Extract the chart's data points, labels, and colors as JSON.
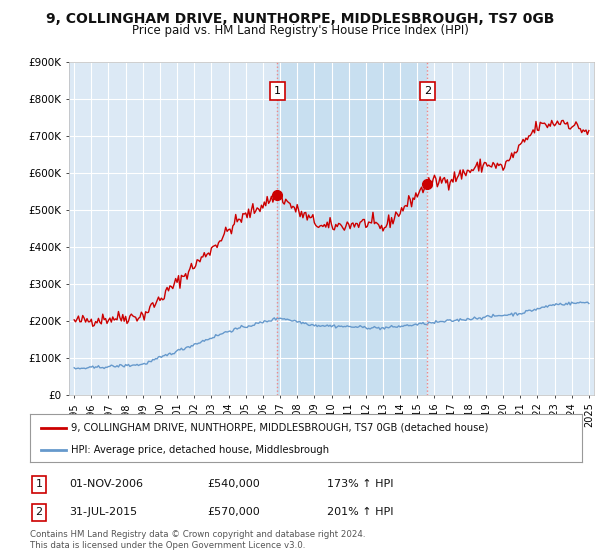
{
  "title": "9, COLLINGHAM DRIVE, NUNTHORPE, MIDDLESBROUGH, TS7 0GB",
  "subtitle": "Price paid vs. HM Land Registry's House Price Index (HPI)",
  "title_fontsize": 10,
  "subtitle_fontsize": 8.5,
  "background_color": "#ffffff",
  "plot_bg_color": "#dce9f5",
  "plot_bg_color_highlight": "#c8dff0",
  "grid_color": "#ffffff",
  "ylim": [
    0,
    900000
  ],
  "yticks": [
    0,
    100000,
    200000,
    300000,
    400000,
    500000,
    600000,
    700000,
    800000,
    900000
  ],
  "ytick_labels": [
    "£0",
    "£100K",
    "£200K",
    "£300K",
    "£400K",
    "£500K",
    "£600K",
    "£700K",
    "£800K",
    "£900K"
  ],
  "xlim_start": 1994.7,
  "xlim_end": 2025.3,
  "sale1_x": 2006.833,
  "sale1_y": 540000,
  "sale1_label": "1",
  "sale1_date": "01-NOV-2006",
  "sale1_price": "£540,000",
  "sale1_hpi": "173% ↑ HPI",
  "sale2_x": 2015.583,
  "sale2_y": 570000,
  "sale2_label": "2",
  "sale2_date": "31-JUL-2015",
  "sale2_price": "£570,000",
  "sale2_hpi": "201% ↑ HPI",
  "red_line_color": "#cc0000",
  "blue_line_color": "#6699cc",
  "sale_marker_color": "#cc0000",
  "vline_color": "#ee8888",
  "legend_label_red": "9, COLLINGHAM DRIVE, NUNTHORPE, MIDDLESBROUGH, TS7 0GB (detached house)",
  "legend_label_blue": "HPI: Average price, detached house, Middlesbrough",
  "footer1": "Contains HM Land Registry data © Crown copyright and database right 2024.",
  "footer2": "This data is licensed under the Open Government Licence v3.0."
}
